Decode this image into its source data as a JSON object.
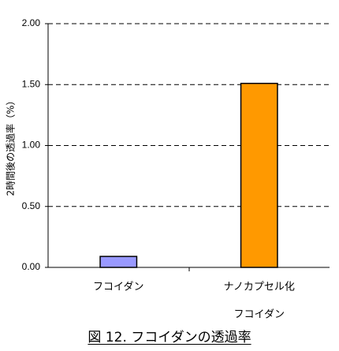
{
  "chart_data": {
    "type": "bar",
    "categories": [
      {
        "lines": [
          "フコイダン"
        ]
      },
      {
        "lines": [
          "ナノカプセル化",
          "フコイダン"
        ]
      }
    ],
    "values": [
      0.09,
      1.51
    ],
    "ylabel": "2時間後の透過率（%）",
    "ylim": [
      0,
      2
    ],
    "yticks": [
      "0.00",
      "0.50",
      "1.00",
      "1.50",
      "2.00"
    ],
    "grid": true,
    "bar_colors": [
      "#9999ff",
      "#ff9900"
    ]
  },
  "caption": "図 12. フコイダンの透過率"
}
